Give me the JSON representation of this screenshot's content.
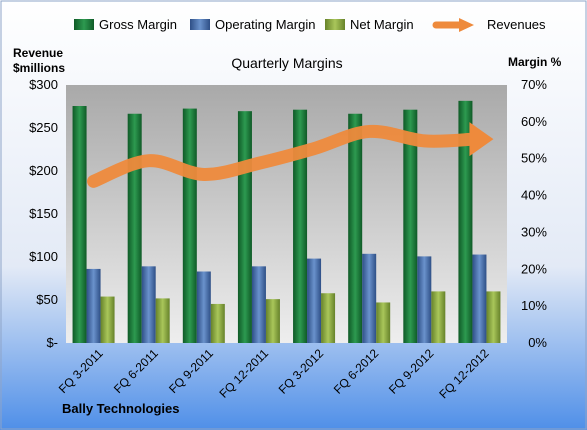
{
  "chart_data": {
    "type": "bar",
    "title": "Quarterly Margins",
    "company": "Bally Technologies",
    "left_axis_label": [
      "Revenue",
      "$millions"
    ],
    "right_axis_label": "Margin %",
    "categories": [
      "FQ 3-2011",
      "FQ 6-2011",
      "FQ 9-2011",
      "FQ 12-2011",
      "FQ 3-2012",
      "FQ 6-2012",
      "FQ 9-2012",
      "FQ 12-2012"
    ],
    "left_axis": {
      "min": 0,
      "max": 300,
      "step": 50,
      "tick_labels": [
        "$-",
        "$50",
        "$100",
        "$150",
        "$200",
        "$250",
        "$300"
      ]
    },
    "right_axis": {
      "min": 0,
      "max": 70,
      "step": 10,
      "tick_labels": [
        "0%",
        "10%",
        "20%",
        "30%",
        "40%",
        "50%",
        "60%",
        "70%"
      ]
    },
    "series": [
      {
        "name": "Gross Margin",
        "type": "bar",
        "axis": "right",
        "color": "#1c7a3a",
        "values": [
          64.3,
          62.2,
          63.6,
          62.9,
          63.3,
          62.2,
          63.3,
          65.7
        ]
      },
      {
        "name": "Operating Margin",
        "type": "bar",
        "axis": "right",
        "color": "#4a72b0",
        "values": [
          20.1,
          20.8,
          19.4,
          20.8,
          22.9,
          24.2,
          23.5,
          24.0
        ]
      },
      {
        "name": "Net Margin",
        "type": "bar",
        "axis": "right",
        "color": "#8fae3c",
        "values": [
          12.6,
          12.1,
          10.6,
          11.9,
          13.5,
          11.0,
          14.0,
          14.0
        ]
      },
      {
        "name": "Revenues",
        "type": "line",
        "axis": "left",
        "color": "#ee8a3c",
        "values": [
          188,
          212,
          196,
          209,
          226,
          246,
          235,
          237
        ]
      }
    ],
    "legend_position": "top",
    "grid": false
  }
}
